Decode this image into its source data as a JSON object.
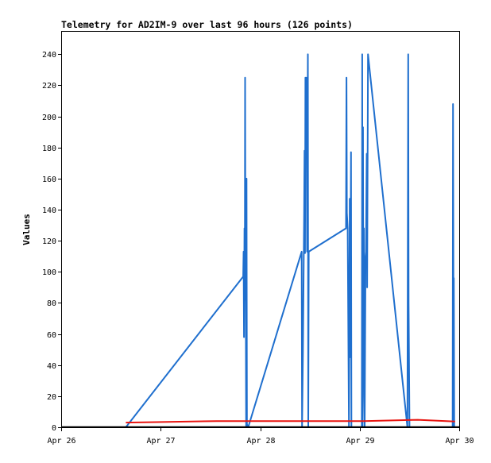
{
  "chart_data": {
    "type": "line",
    "title": "Telemetry for AD2IM-9 over last 96 hours (126 points)",
    "xlabel": "",
    "ylabel": "Values",
    "x_ticks": [
      "Apr 26",
      "Apr 27",
      "Apr 28",
      "Apr 29",
      "Apr 30"
    ],
    "xlim": [
      0,
      96
    ],
    "ylim": [
      0,
      255
    ],
    "y_ticks": [
      0,
      20,
      40,
      60,
      80,
      100,
      120,
      140,
      160,
      180,
      200,
      220,
      240
    ],
    "grid": false,
    "colors": {
      "series_blue": "#1f6fce",
      "series_red": "#e8140f",
      "series_black": "#000000"
    },
    "series": [
      {
        "color": "#1f6fce",
        "points": [
          [
            15.6,
            0
          ],
          [
            43.9,
            97
          ],
          [
            44.0,
            113
          ],
          [
            44.1,
            58
          ],
          [
            44.2,
            128
          ],
          [
            44.3,
            113
          ],
          [
            44.35,
            225
          ],
          [
            44.45,
            82
          ],
          [
            44.5,
            113
          ],
          [
            44.6,
            0
          ],
          [
            44.7,
            160
          ],
          [
            44.8,
            2
          ],
          [
            45.1,
            0
          ],
          [
            58.0,
            113
          ],
          [
            58.1,
            0
          ],
          [
            58.3,
            49
          ],
          [
            58.6,
            138
          ],
          [
            58.7,
            178
          ],
          [
            58.8,
            112
          ],
          [
            58.9,
            225
          ],
          [
            59.1,
            178
          ],
          [
            59.2,
            225
          ],
          [
            59.3,
            113
          ],
          [
            59.5,
            240
          ],
          [
            59.6,
            0
          ],
          [
            59.7,
            113
          ],
          [
            68.7,
            128
          ],
          [
            68.8,
            225
          ],
          [
            68.9,
            138
          ],
          [
            69.1,
            128
          ],
          [
            69.4,
            0
          ],
          [
            69.6,
            147
          ],
          [
            69.7,
            45
          ],
          [
            69.9,
            177
          ],
          [
            70.0,
            0
          ],
          [
            72.5,
            0
          ],
          [
            72.6,
            240
          ],
          [
            72.7,
            0
          ],
          [
            72.8,
            193
          ],
          [
            72.9,
            49
          ],
          [
            73.0,
            128
          ],
          [
            73.1,
            20
          ],
          [
            73.2,
            0
          ],
          [
            73.4,
            110
          ],
          [
            73.5,
            113
          ],
          [
            73.7,
            176
          ],
          [
            73.8,
            90
          ],
          [
            74.0,
            240
          ],
          [
            83.5,
            0
          ],
          [
            83.7,
            240
          ],
          [
            83.8,
            80
          ],
          [
            84.0,
            0
          ],
          [
            94.4,
            0
          ],
          [
            94.5,
            208
          ],
          [
            94.6,
            96
          ],
          [
            94.7,
            96
          ],
          [
            94.8,
            0
          ]
        ]
      },
      {
        "color": "#e8140f",
        "points": [
          [
            15.6,
            3
          ],
          [
            23.0,
            3.3
          ],
          [
            37.5,
            4
          ],
          [
            60.0,
            4
          ],
          [
            73.0,
            4
          ],
          [
            86.0,
            4.8
          ],
          [
            95.0,
            3.7
          ]
        ]
      },
      {
        "color": "#000000",
        "points": [
          [
            0,
            0.3
          ],
          [
            96,
            0.3
          ]
        ]
      }
    ]
  }
}
